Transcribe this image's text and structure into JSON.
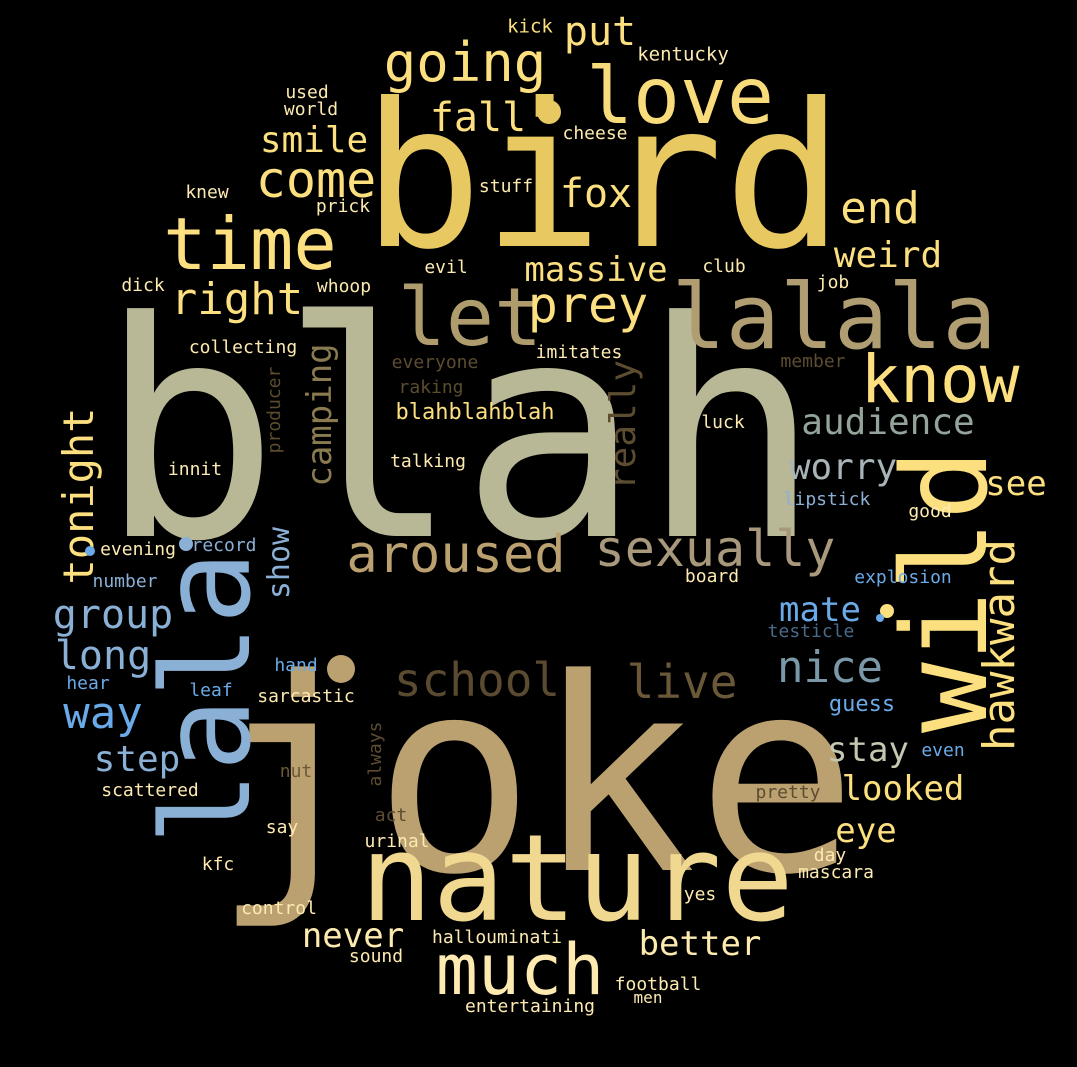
{
  "background": "#000000",
  "words": [
    {
      "text": "blah",
      "color": "#b8b896"
    },
    {
      "text": "joke",
      "color": "#bba070"
    },
    {
      "text": "bird",
      "color": "#e8c860"
    },
    {
      "text": "nature",
      "color": "#f0d890"
    },
    {
      "text": "lalala",
      "color": "#b09e72"
    },
    {
      "text": "lala",
      "color": "#8ab0d6"
    },
    {
      "text": "love",
      "color": "#f8dc7c"
    },
    {
      "text": "time",
      "color": "#fce080"
    },
    {
      "text": "let",
      "color": "#ae9c6c"
    },
    {
      "text": "wild",
      "color": "#fce080"
    },
    {
      "text": "know",
      "color": "#fce080"
    },
    {
      "text": "much",
      "color": "#fdeab0"
    },
    {
      "text": "going",
      "color": "#fce080"
    },
    {
      "text": "come",
      "color": "#fce080"
    },
    {
      "text": "prey",
      "color": "#fce080"
    },
    {
      "text": "right",
      "color": "#fce080"
    },
    {
      "text": "aroused",
      "color": "#bba070"
    },
    {
      "text": "sexually",
      "color": "#a8987c"
    },
    {
      "text": "school",
      "color": "#5a4a30"
    },
    {
      "text": "live",
      "color": "#6a5838"
    },
    {
      "text": "hawkward",
      "color": "#fce080"
    },
    {
      "text": "end",
      "color": "#fce080"
    },
    {
      "text": "nice",
      "color": "#7a98a8"
    },
    {
      "text": "tonight",
      "color": "#fce080"
    },
    {
      "text": "massive",
      "color": "#fce080"
    },
    {
      "text": "weird",
      "color": "#fce080"
    },
    {
      "text": "fall",
      "color": "#fce080"
    },
    {
      "text": "smile",
      "color": "#fce080"
    },
    {
      "text": "fox",
      "color": "#fce080"
    },
    {
      "text": "put",
      "color": "#fce080"
    },
    {
      "text": "audience",
      "color": "#94a49a"
    },
    {
      "text": "worry",
      "color": "#a8b4b8"
    },
    {
      "text": "really",
      "color": "#5c4c30"
    },
    {
      "text": "camping",
      "color": "#8a7a50"
    },
    {
      "text": "group",
      "color": "#8ab0d6"
    },
    {
      "text": "long",
      "color": "#8ab0d6"
    },
    {
      "text": "way",
      "color": "#6aaae8"
    },
    {
      "text": "step",
      "color": "#8ab0d6"
    },
    {
      "text": "show",
      "color": "#8ab0d6"
    },
    {
      "text": "mate",
      "color": "#6aaae8"
    },
    {
      "text": "stay",
      "color": "#c4c8b0"
    },
    {
      "text": "looked",
      "color": "#fce080"
    },
    {
      "text": "eye",
      "color": "#fce080"
    },
    {
      "text": "see",
      "color": "#fce080"
    },
    {
      "text": "better",
      "color": "#fdeab0"
    },
    {
      "text": "never",
      "color": "#fdeab0"
    },
    {
      "text": "blahblahblah",
      "color": "#fce080"
    },
    {
      "text": "kick",
      "color": "#fce080"
    },
    {
      "text": "kentucky",
      "color": "#fdeab0"
    },
    {
      "text": "used",
      "color": "#fdeab0"
    },
    {
      "text": "world",
      "color": "#fdeab0"
    },
    {
      "text": "cheese",
      "color": "#fdeab0"
    },
    {
      "text": "knew",
      "color": "#fdeab0"
    },
    {
      "text": "stuff",
      "color": "#fdeab0"
    },
    {
      "text": "prick",
      "color": "#fdeab0"
    },
    {
      "text": "evil",
      "color": "#fdeab0"
    },
    {
      "text": "club",
      "color": "#fdeab0"
    },
    {
      "text": "dick",
      "color": "#fdeab0"
    },
    {
      "text": "whoop",
      "color": "#fdeab0"
    },
    {
      "text": "job",
      "color": "#fdeab0"
    },
    {
      "text": "collecting",
      "color": "#fdeab0"
    },
    {
      "text": "everyone",
      "color": "#5c4c30"
    },
    {
      "text": "imitates",
      "color": "#fdeab0"
    },
    {
      "text": "member",
      "color": "#5c4c30"
    },
    {
      "text": "raking",
      "color": "#5c4c30"
    },
    {
      "text": "producer",
      "color": "#5c4c30"
    },
    {
      "text": "luck",
      "color": "#fdeab0"
    },
    {
      "text": "innit",
      "color": "#fdeab0"
    },
    {
      "text": "talking",
      "color": "#fdeab0"
    },
    {
      "text": "lipstick",
      "color": "#8ab0d6"
    },
    {
      "text": "good",
      "color": "#fdeab0"
    },
    {
      "text": "evening",
      "color": "#fdeab0"
    },
    {
      "text": "record",
      "color": "#8ab0d6"
    },
    {
      "text": "number",
      "color": "#8ab0d6"
    },
    {
      "text": "board",
      "color": "#fdeab0"
    },
    {
      "text": "explosion",
      "color": "#6aaae8"
    },
    {
      "text": "testicle",
      "color": "#4a6a8a"
    },
    {
      "text": "hand",
      "color": "#6aaae8"
    },
    {
      "text": "hear",
      "color": "#6aaae8"
    },
    {
      "text": "leaf",
      "color": "#6aaae8"
    },
    {
      "text": "sarcastic",
      "color": "#fdeab0"
    },
    {
      "text": "always",
      "color": "#5c4c30"
    },
    {
      "text": "guess",
      "color": "#6aaae8"
    },
    {
      "text": "even",
      "color": "#6aaae8"
    },
    {
      "text": "nut",
      "color": "#6a5838"
    },
    {
      "text": "scattered",
      "color": "#fdeab0"
    },
    {
      "text": "pretty",
      "color": "#5c4c30"
    },
    {
      "text": "act",
      "color": "#5c4c30"
    },
    {
      "text": "say",
      "color": "#fdeab0"
    },
    {
      "text": "urinal",
      "color": "#fdeab0"
    },
    {
      "text": "day",
      "color": "#fdeab0"
    },
    {
      "text": "kfc",
      "color": "#fdeab0"
    },
    {
      "text": "mascara",
      "color": "#fdeab0"
    },
    {
      "text": "yes",
      "color": "#fdeab0"
    },
    {
      "text": "control",
      "color": "#fdeab0"
    },
    {
      "text": "hallouminati",
      "color": "#fdeab0"
    },
    {
      "text": "sound",
      "color": "#fdeab0"
    },
    {
      "text": "football",
      "color": "#fdeab0"
    },
    {
      "text": "men",
      "color": "#fdeab0"
    },
    {
      "text": "entertaining",
      "color": "#fdeab0"
    }
  ],
  "dots": [
    {
      "color": "#e8c860"
    },
    {
      "color": "#bba070"
    },
    {
      "color": "#fce080"
    },
    {
      "color": "#6aaae8"
    },
    {
      "color": "#8ab0d6"
    },
    {
      "color": "#6aaae8"
    }
  ]
}
